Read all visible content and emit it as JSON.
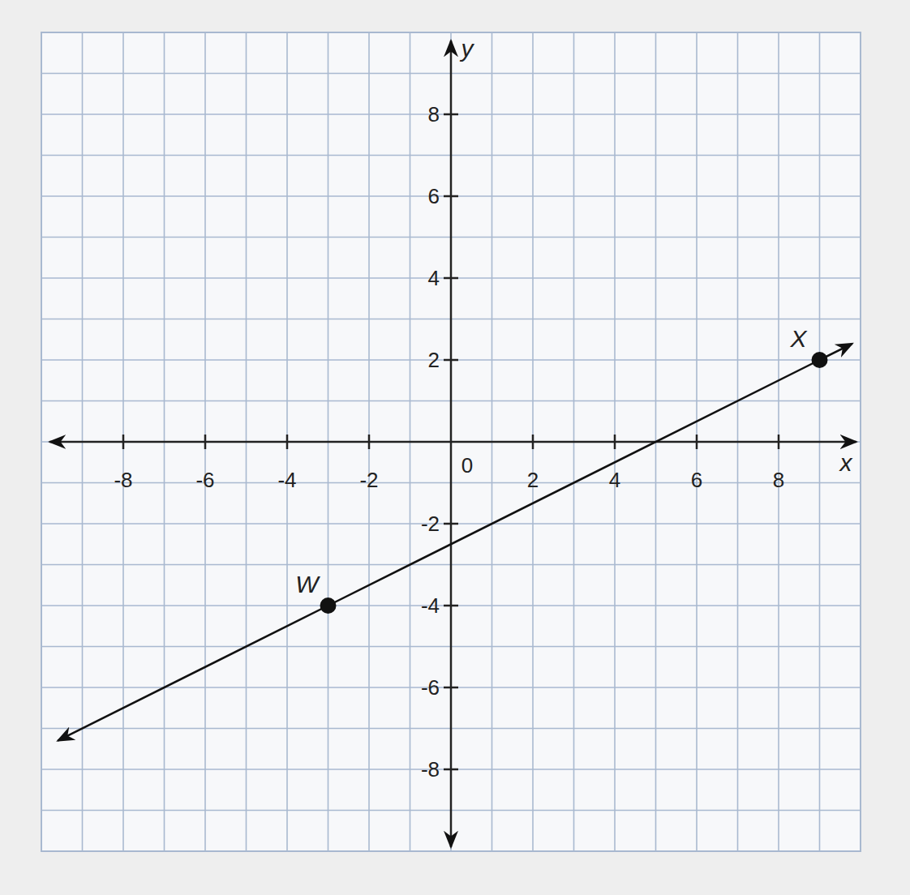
{
  "chart_data": {
    "type": "line",
    "x_label": "x",
    "y_label": "y",
    "points": [
      {
        "label": "W",
        "x": -3,
        "y": -4
      },
      {
        "label": "X",
        "x": 9,
        "y": 2
      }
    ],
    "color": "#111111",
    "marker": "circle",
    "xlim": [
      -10,
      10
    ],
    "ylim": [
      -10,
      10
    ],
    "xticks": [
      -8,
      -6,
      -4,
      -2,
      0,
      2,
      4,
      6,
      8
    ],
    "yticks": [
      -8,
      -6,
      -4,
      -2,
      2,
      4,
      6,
      8
    ],
    "grid": true
  }
}
